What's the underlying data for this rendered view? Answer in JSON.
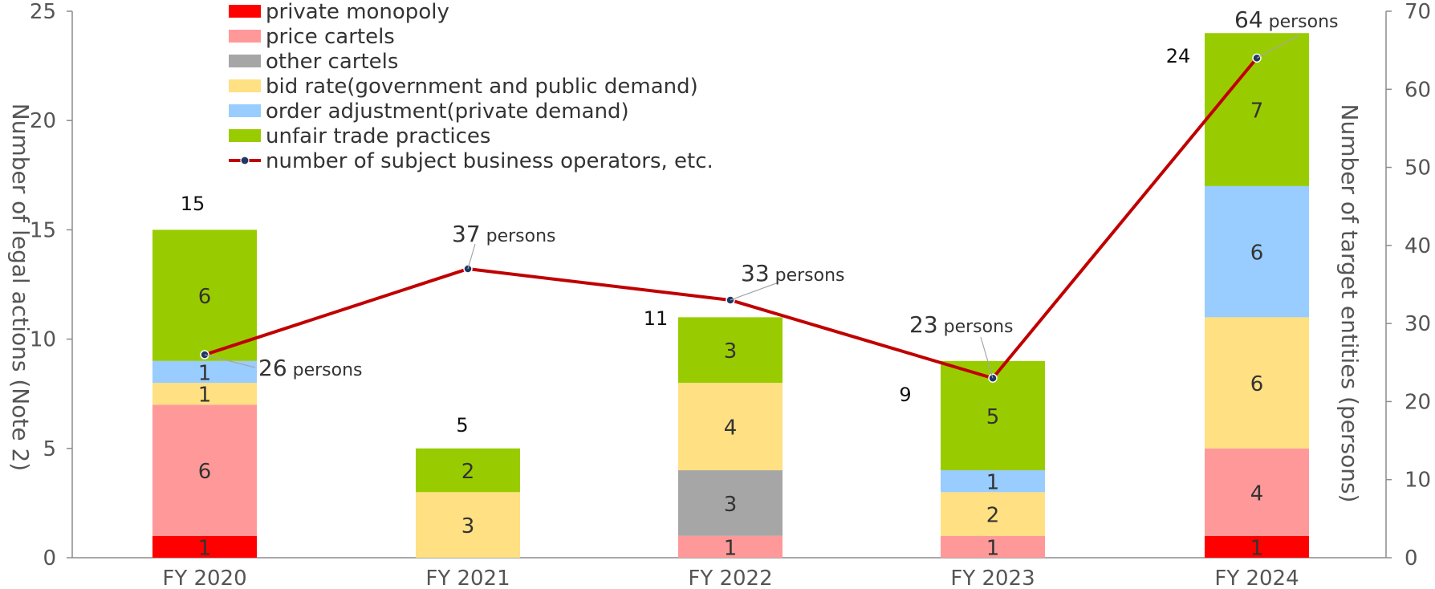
{
  "chart_data": {
    "type": "bar",
    "stacked": true,
    "categories": [
      "FY 2020",
      "FY 2021",
      "FY 2022",
      "FY 2023",
      "FY 2024"
    ],
    "series": [
      {
        "name": "private monopoly",
        "color": "#ff0000",
        "values": [
          1,
          0,
          0,
          0,
          1
        ],
        "labels": [
          "1",
          "",
          "",
          "",
          "1"
        ]
      },
      {
        "name": "price cartels",
        "color": "#ff9999",
        "values": [
          6,
          0,
          1,
          1,
          4
        ],
        "labels": [
          "6",
          "",
          "1",
          "1",
          "4"
        ]
      },
      {
        "name": "other cartels",
        "color": "#a6a6a6",
        "values": [
          0,
          0,
          3,
          0,
          0
        ],
        "labels": [
          "",
          "",
          "3",
          "",
          ""
        ]
      },
      {
        "name": "bid rate(government and public demand)",
        "color": "#ffe082",
        "values": [
          1,
          3,
          4,
          2,
          6
        ],
        "labels": [
          "1",
          "3",
          "4",
          "2",
          "6"
        ]
      },
      {
        "name": "order adjustment(private demand)",
        "color": "#99ccff",
        "values": [
          1,
          0,
          0,
          1,
          6
        ],
        "labels": [
          "1",
          "",
          "",
          "1",
          "6"
        ]
      },
      {
        "name": "unfair trade practices",
        "color": "#99cc00",
        "values": [
          6,
          2,
          3,
          5,
          7
        ],
        "labels": [
          "6",
          "2",
          "3",
          "5",
          "7"
        ]
      }
    ],
    "totals": [
      "15",
      "5",
      "11",
      "9",
      "24"
    ],
    "line": {
      "name": "number of subject business operators, etc.",
      "color": "#c00000",
      "values": [
        26,
        37,
        33,
        23,
        64
      ],
      "value_labels": [
        "26",
        "37",
        "33",
        "23",
        "64"
      ],
      "unit_label": "persons"
    },
    "ylabel": "Number of legal actions (Note 2)",
    "y2label": "Number of target entities (persons)",
    "ylim": [
      0,
      25
    ],
    "y2lim": [
      0,
      70
    ],
    "yticks": [
      "0",
      "5",
      "10",
      "15",
      "20",
      "25"
    ],
    "y2ticks": [
      "0",
      "10",
      "20",
      "30",
      "40",
      "50",
      "60",
      "70"
    ],
    "legend_position": "top-left",
    "grid": false
  }
}
